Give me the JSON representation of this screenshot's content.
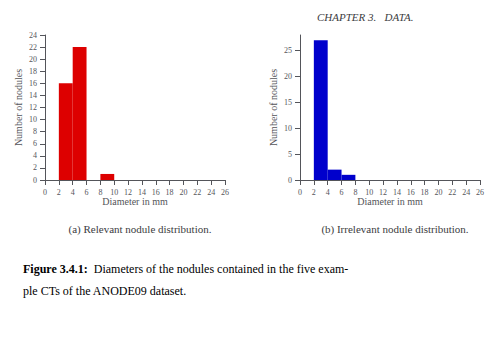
{
  "chart_data": [
    {
      "type": "histogram",
      "title": "(a) Relevant nodule distribution.",
      "xlabel": "Diameter in mm",
      "ylabel": "Number of nodules",
      "bins": [
        0,
        2,
        4,
        6,
        8,
        10,
        12,
        14,
        16,
        18,
        20,
        22,
        24,
        26
      ],
      "values": [
        0,
        16,
        22,
        0,
        1,
        0,
        0,
        0,
        0,
        0,
        0,
        0,
        0
      ],
      "color": "#dd0000",
      "xlim": [
        0,
        26
      ],
      "xticks": [
        0,
        2,
        4,
        6,
        8,
        10,
        12,
        14,
        16,
        18,
        20,
        22,
        24,
        26
      ],
      "ylim": [
        0,
        24
      ],
      "yticks": [
        0,
        2,
        4,
        6,
        8,
        10,
        12,
        14,
        16,
        18,
        20,
        22,
        24
      ],
      "grid": false
    },
    {
      "type": "histogram",
      "title": "(b) Irrelevant nodule distribution.",
      "xlabel": "Diameter in mm",
      "ylabel": "Number of nodules",
      "bins": [
        0,
        2,
        4,
        6,
        8,
        10,
        12,
        14,
        16,
        18,
        20,
        22,
        24,
        26
      ],
      "values": [
        0,
        27,
        2,
        1,
        0,
        0,
        0,
        0,
        0,
        0,
        0,
        0,
        0
      ],
      "color": "#0000cc",
      "xlim": [
        0,
        26
      ],
      "xticks": [
        0,
        2,
        4,
        6,
        8,
        10,
        12,
        14,
        16,
        18,
        20,
        22,
        24,
        26
      ],
      "ylim": [
        0,
        28
      ],
      "yticks": [
        0,
        5,
        10,
        15,
        20,
        25
      ],
      "grid": false
    }
  ],
  "annotations": [
    "CHAPTER 3.   DATA.",
    "Figure 3.4.1:",
    "  Diameters of the nodules contained in the five exam-",
    "ple CTs of the ANODE09 dataset."
  ]
}
